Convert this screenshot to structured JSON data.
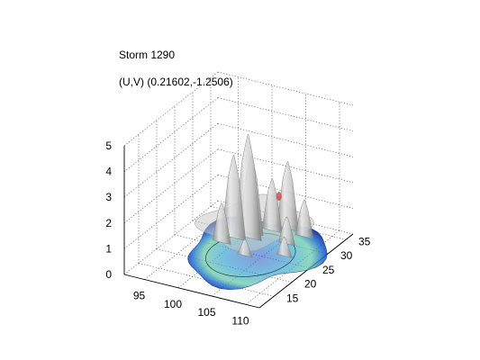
{
  "chart_data": {
    "type": "surface3d",
    "title": "Storm 1290",
    "subtitle": "(U,V) (0.21602,-1.2506)",
    "x_ticks": [
      "95",
      "100",
      "105",
      "110"
    ],
    "y_ticks": [
      "15",
      "20",
      "25",
      "30",
      "35"
    ],
    "z_ticks": [
      "0",
      "1",
      "2",
      "3",
      "4",
      "5"
    ],
    "xlim": [
      92,
      112
    ],
    "ylim": [
      11,
      37
    ],
    "zlim": [
      0,
      5
    ],
    "grid": true,
    "surface_color": "#b4b4b4",
    "base_colormap": [
      "#0b1a8c",
      "#1f6fd0",
      "#35b0c8",
      "#7fd08a",
      "#f0e040"
    ],
    "peaks": [
      {
        "x": 100.2,
        "y": 26.0,
        "z": 3.5
      },
      {
        "x": 101.8,
        "y": 27.0,
        "z": 4.3
      },
      {
        "x": 101.5,
        "y": 28.5,
        "z": 3.3
      },
      {
        "x": 103.5,
        "y": 30.5,
        "z": 2.3
      },
      {
        "x": 105.0,
        "y": 32.0,
        "z": 2.9
      },
      {
        "x": 99.5,
        "y": 24.0,
        "z": 1.8
      },
      {
        "x": 107.0,
        "y": 28.0,
        "z": 1.3
      },
      {
        "x": 108.0,
        "y": 31.0,
        "z": 1.7
      },
      {
        "x": 108.5,
        "y": 24.5,
        "z": 1.0
      },
      {
        "x": 104.0,
        "y": 22.0,
        "z": 0.9
      }
    ]
  }
}
